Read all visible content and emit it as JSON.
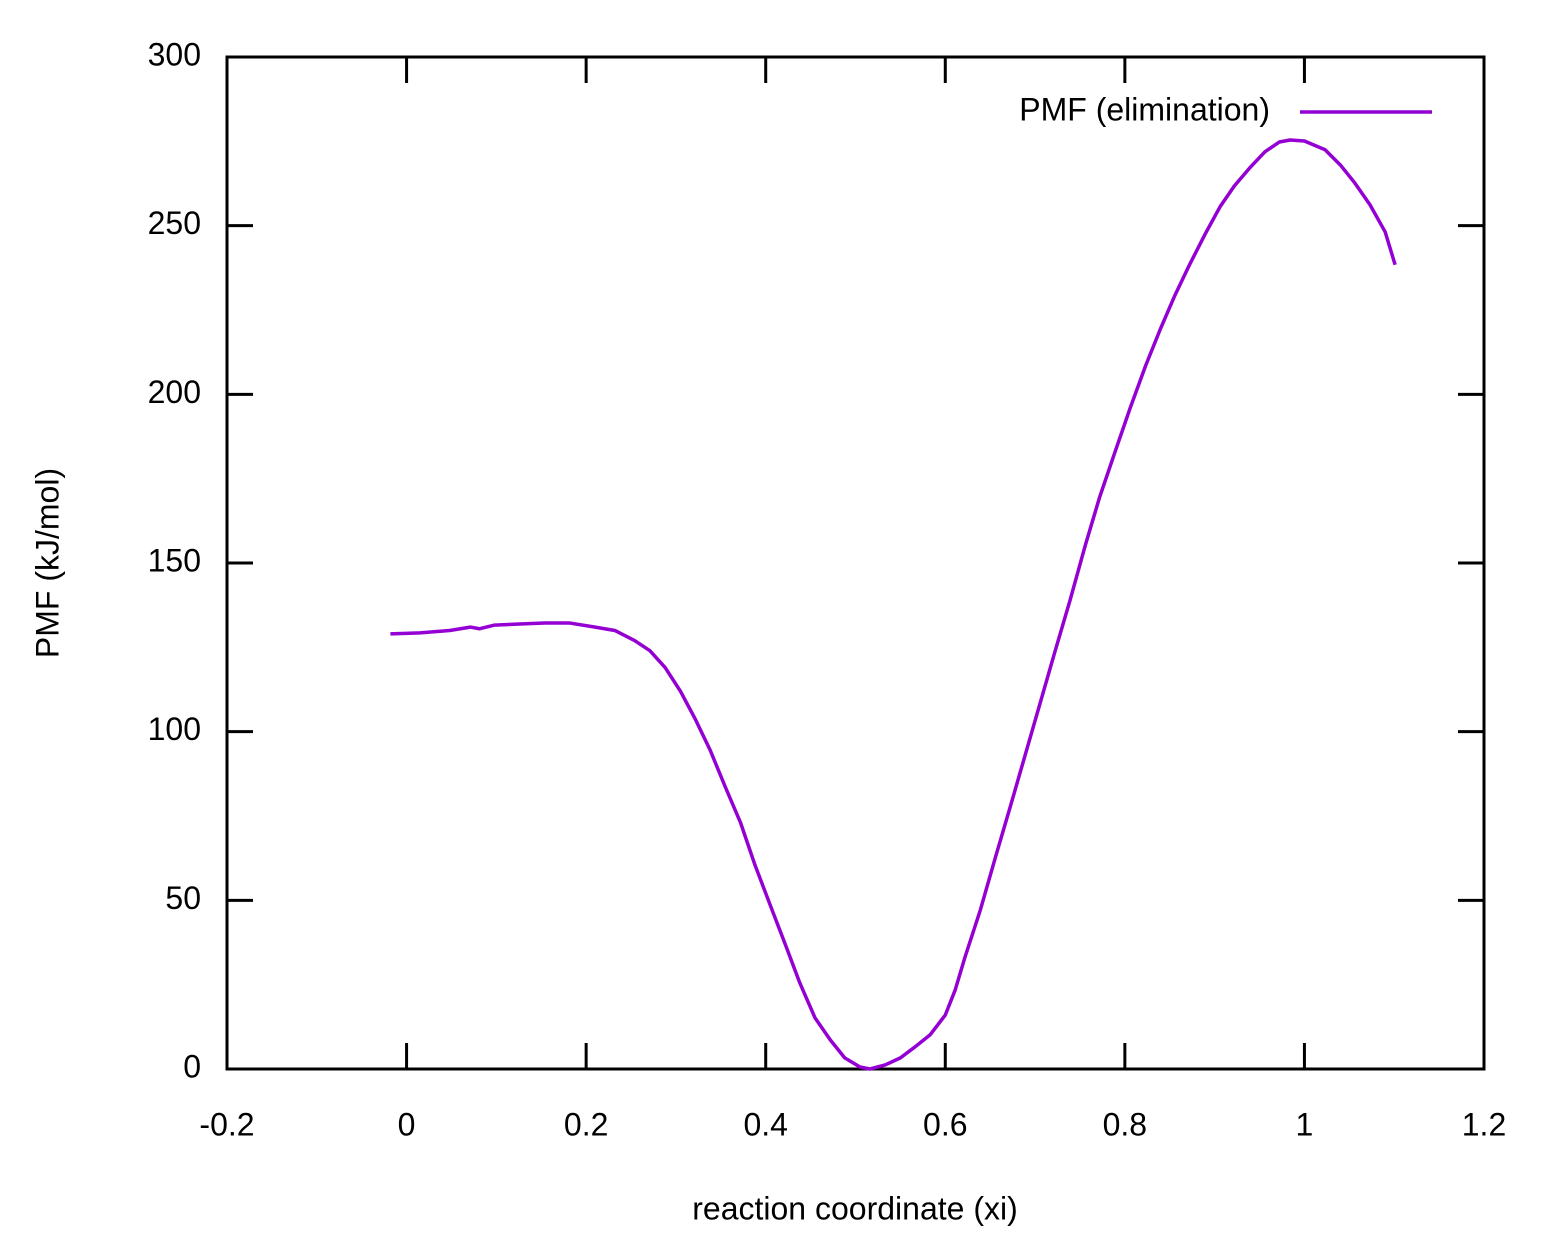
{
  "chart_data": {
    "type": "line",
    "xlabel": "reaction coordinate (xi)",
    "ylabel": "PMF (kJ/mol)",
    "xlim": [
      -0.2,
      1.2
    ],
    "ylim": [
      0,
      300
    ],
    "xticks": [
      -0.2,
      0,
      0.2,
      0.4,
      0.6,
      0.8,
      1,
      1.2
    ],
    "yticks": [
      0,
      50,
      100,
      150,
      200,
      250,
      300
    ],
    "legend": "top-right",
    "series": [
      {
        "name": "PMF (elimination)",
        "color": "#9400d3",
        "x": [
          -0.018,
          0.015,
          0.048,
          0.071,
          0.081,
          0.098,
          0.126,
          0.154,
          0.182,
          0.21,
          0.232,
          0.254,
          0.271,
          0.288,
          0.305,
          0.321,
          0.338,
          0.355,
          0.372,
          0.388,
          0.405,
          0.422,
          0.438,
          0.455,
          0.472,
          0.488,
          0.505,
          0.516,
          0.533,
          0.55,
          0.566,
          0.583,
          0.6,
          0.611,
          0.622,
          0.639,
          0.656,
          0.672,
          0.689,
          0.706,
          0.722,
          0.739,
          0.756,
          0.772,
          0.789,
          0.806,
          0.823,
          0.839,
          0.856,
          0.872,
          0.889,
          0.906,
          0.922,
          0.939,
          0.956,
          0.972,
          0.984,
          1.0,
          1.023,
          1.04,
          1.056,
          1.073,
          1.09,
          1.101
        ],
        "values": [
          129,
          129.3,
          130,
          131,
          130.5,
          131.6,
          131.9,
          132.2,
          132.2,
          131,
          130,
          127,
          124,
          119,
          112,
          104,
          94.6,
          83.6,
          73,
          60.5,
          48.6,
          36.8,
          25.5,
          15.1,
          8.6,
          3.3,
          0.6,
          0,
          1.2,
          3.3,
          6.5,
          10.1,
          16,
          23.4,
          33.2,
          47.1,
          62.9,
          77.4,
          93.1,
          108.8,
          123.6,
          139,
          155.3,
          169.6,
          182.9,
          196,
          208.4,
          219,
          229.5,
          238.4,
          247.3,
          255.6,
          261.8,
          267.1,
          271.9,
          274.8,
          275.4,
          275.1,
          272.5,
          268,
          262.7,
          256.2,
          248.1,
          238.4
        ]
      }
    ]
  }
}
